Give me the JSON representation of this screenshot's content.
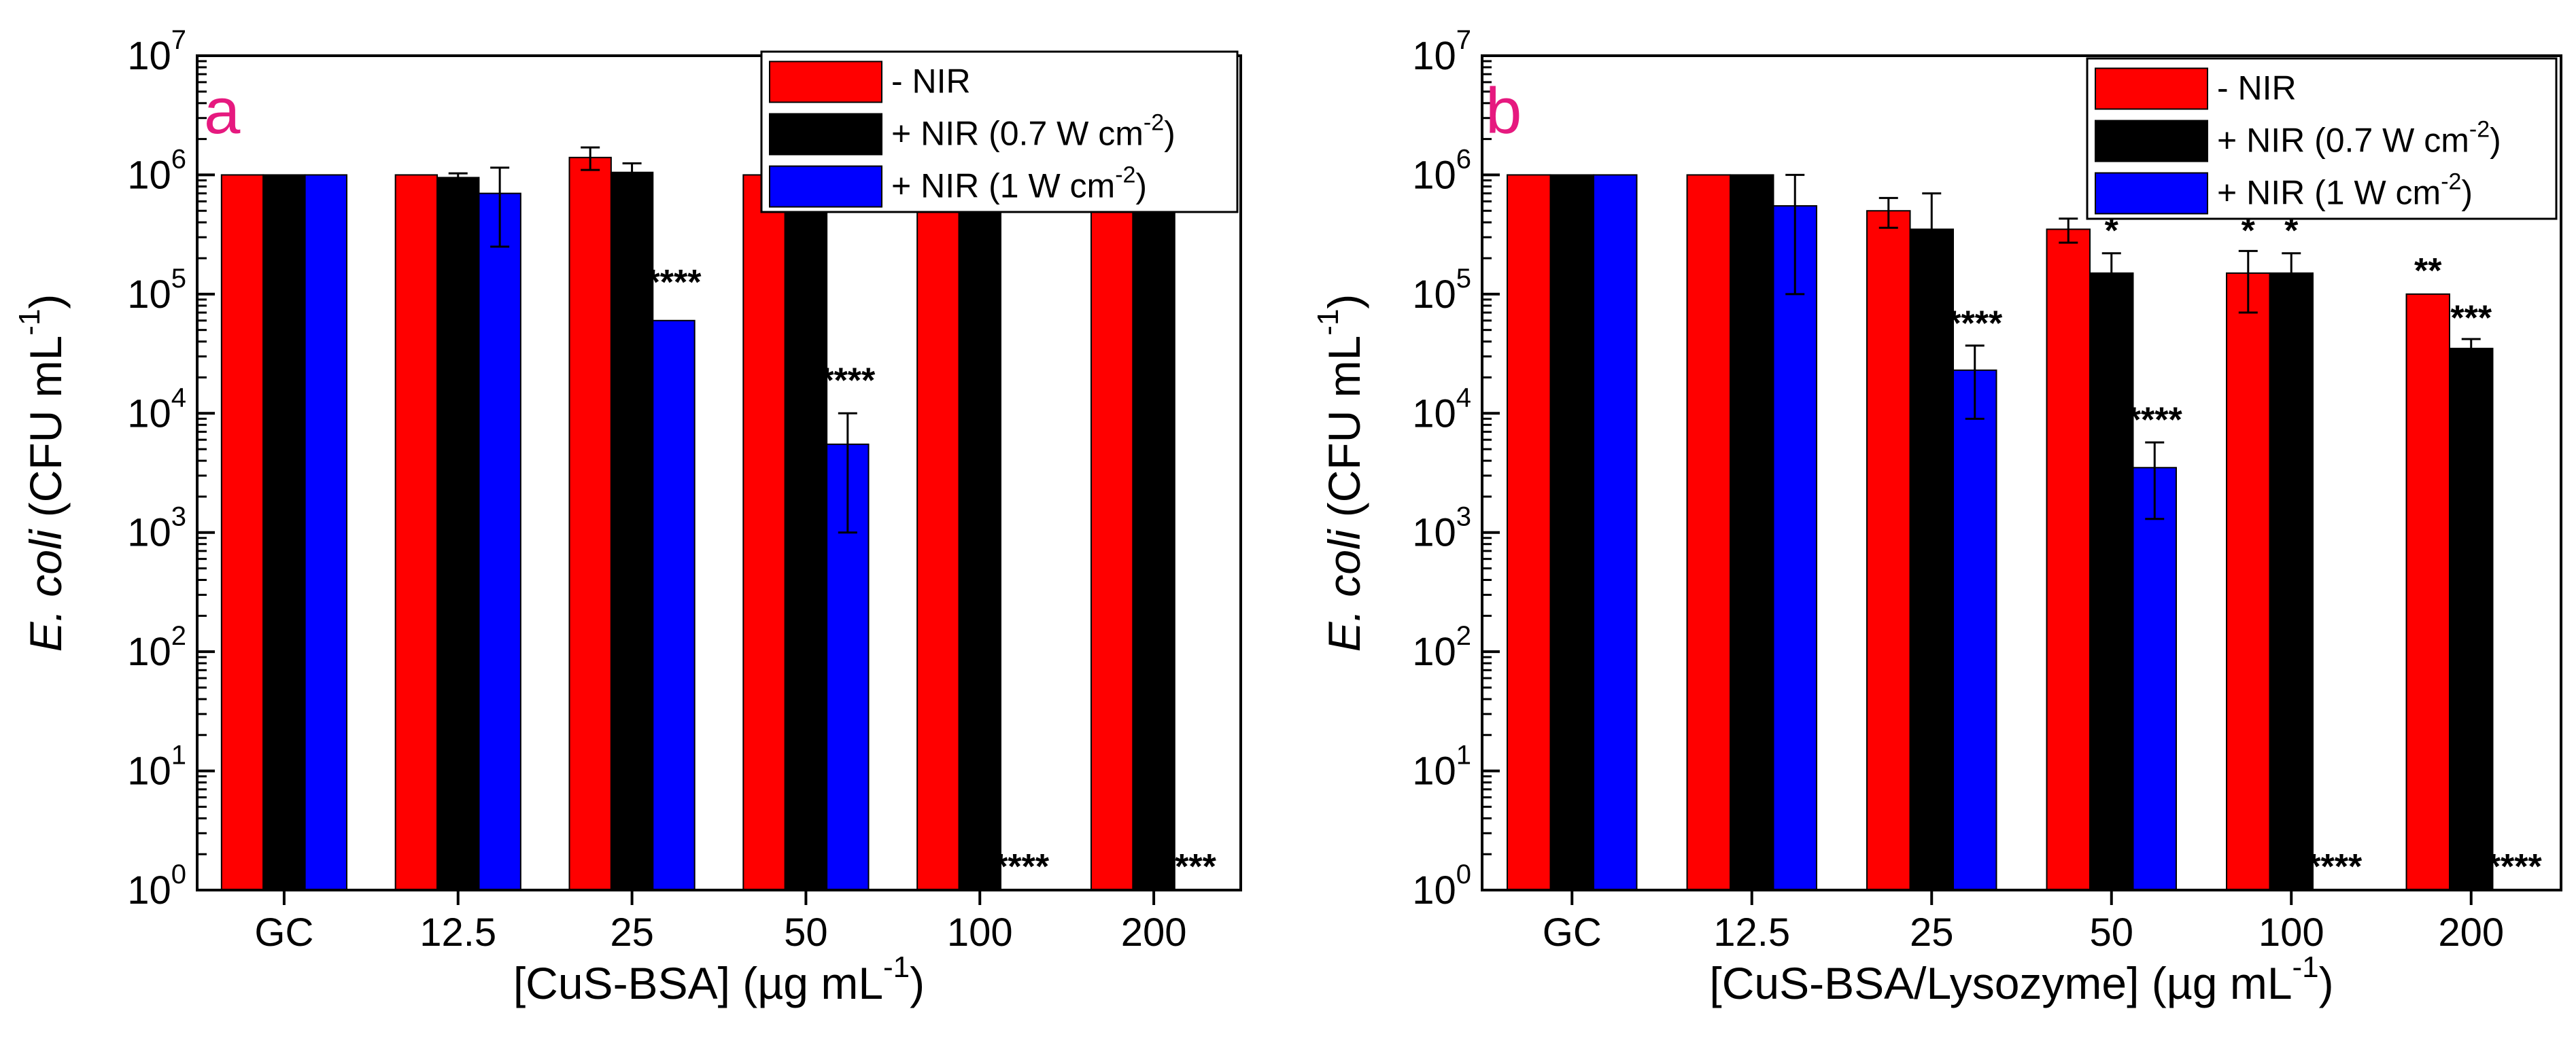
{
  "chart_data": [
    {
      "type": "bar",
      "panel_label": "a",
      "title": "",
      "ylabel": {
        "italic": "E. coli",
        "normal": "(CFU mL",
        "sup": "-1",
        "close": ")"
      },
      "xlabel": {
        "normal": "[CuS-BSA] (µg mL",
        "sup": "-1",
        "close": ")"
      },
      "yscale": "log",
      "ylim": [
        1,
        10000000
      ],
      "ytick_exponents": [
        "0",
        "1",
        "2",
        "3",
        "4",
        "5",
        "6",
        "7"
      ],
      "ytick_base": "10",
      "categories": [
        "GC",
        "12.5",
        "25",
        "50",
        "100",
        "200"
      ],
      "legend_position": "top-right",
      "series": [
        {
          "name": "- NIR",
          "color": "#ff0000",
          "values": [
            1000000,
            1000000,
            1400000,
            1000000,
            1000000,
            780000
          ],
          "errors": [
            0,
            0,
            300000,
            0,
            0,
            40000
          ]
        },
        {
          "name": "+ NIR (0.7 W cm-2)",
          "color": "#000000",
          "values": [
            1000000,
            950000,
            1050000,
            720000,
            900000,
            700000
          ],
          "errors": [
            0,
            80000,
            200000,
            0,
            0,
            40000
          ]
        },
        {
          "name": "+ NIR (1 W cm-2)",
          "color": "#0000ff",
          "values": [
            1000000,
            700000,
            60000,
            5500,
            null,
            null
          ],
          "errors": [
            0,
            450000,
            0,
            4500,
            0,
            0
          ]
        }
      ],
      "legend": [
        {
          "prefix": "- NIR",
          "sup": "",
          "suffix": ""
        },
        {
          "prefix": "+ NIR (0.7 W cm",
          "sup": "-2",
          "suffix": ")"
        },
        {
          "prefix": "+ NIR (1 W cm",
          "sup": "-2",
          "suffix": ")"
        }
      ],
      "annotations": [
        {
          "text": "****",
          "category": 2,
          "series": 2,
          "at": 100000
        },
        {
          "text": "****",
          "category": 3,
          "series": 2,
          "at": 15000
        },
        {
          "text": "****",
          "category": 4,
          "series": 2,
          "at": 1.25
        },
        {
          "text": "***",
          "category": 5,
          "series": 2,
          "at": 1.25
        }
      ]
    },
    {
      "type": "bar",
      "panel_label": "b",
      "title": "",
      "ylabel": {
        "italic": "E. coli",
        "normal": "(CFU mL",
        "sup": "-1",
        "close": ")"
      },
      "xlabel": {
        "normal": "[CuS-BSA/Lysozyme] (µg mL",
        "sup": "-1",
        "close": ")"
      },
      "yscale": "log",
      "ylim": [
        1,
        10000000
      ],
      "ytick_exponents": [
        "0",
        "1",
        "2",
        "3",
        "4",
        "5",
        "6",
        "7"
      ],
      "ytick_base": "10",
      "categories": [
        "GC",
        "12.5",
        "25",
        "50",
        "100",
        "200"
      ],
      "legend_position": "top-right",
      "series": [
        {
          "name": "- NIR",
          "color": "#ff0000",
          "values": [
            1000000,
            1000000,
            500000,
            350000,
            150000,
            100000
          ],
          "errors": [
            0,
            0,
            140000,
            80000,
            80000,
            0
          ]
        },
        {
          "name": "+ NIR (0.7 W cm-2)",
          "color": "#000000",
          "values": [
            1000000,
            1000000,
            350000,
            150000,
            150000,
            35000
          ],
          "errors": [
            0,
            0,
            350000,
            70000,
            70000,
            7000
          ]
        },
        {
          "name": "+ NIR (1 W cm-2)",
          "color": "#0000ff",
          "values": [
            1000000,
            550000,
            23000,
            3500,
            null,
            null
          ],
          "errors": [
            0,
            450000,
            14000,
            2200,
            0,
            0
          ]
        }
      ],
      "legend": [
        {
          "prefix": "- NIR",
          "sup": "",
          "suffix": ""
        },
        {
          "prefix": "+ NIR (0.7 W cm",
          "sup": "-2",
          "suffix": ")"
        },
        {
          "prefix": "+ NIR (1 W cm",
          "sup": "-2",
          "suffix": ")"
        }
      ],
      "annotations": [
        {
          "text": "****",
          "category": 2,
          "series": 2,
          "at": 45000
        },
        {
          "text": "*",
          "category": 3,
          "series": 1,
          "at": 270000
        },
        {
          "text": "****",
          "category": 3,
          "series": 2,
          "at": 7000
        },
        {
          "text": "*",
          "category": 4,
          "series": 0,
          "at": 270000
        },
        {
          "text": "*",
          "category": 4,
          "series": 1,
          "at": 270000
        },
        {
          "text": "****",
          "category": 4,
          "series": 2,
          "at": 1.25
        },
        {
          "text": "**",
          "category": 5,
          "series": 0,
          "at": 125000
        },
        {
          "text": "***",
          "category": 5,
          "series": 1,
          "at": 50000
        },
        {
          "text": "****",
          "category": 5,
          "series": 2,
          "at": 1.25
        }
      ]
    }
  ]
}
